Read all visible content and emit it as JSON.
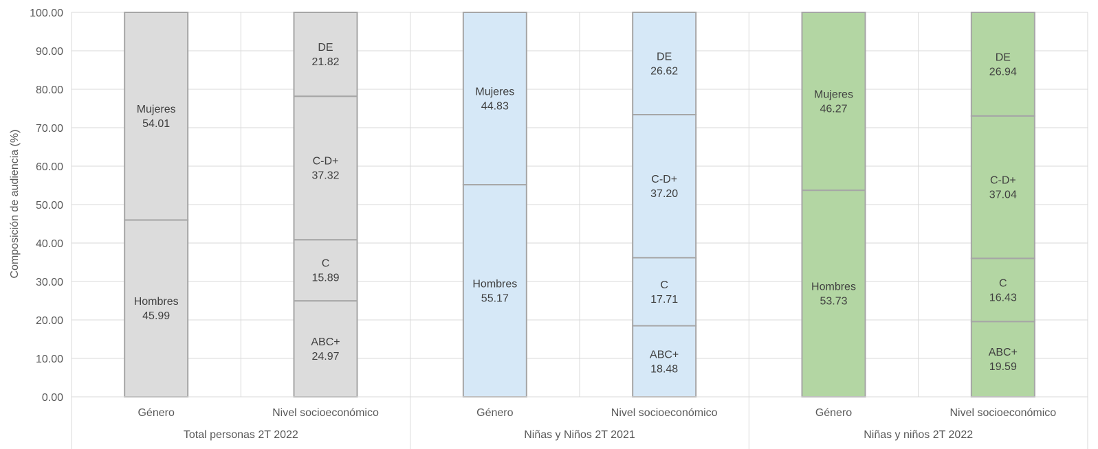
{
  "chart_data": {
    "type": "bar",
    "stacked": true,
    "ylabel": "Composición de audiencia (%)",
    "ylim": [
      0,
      100
    ],
    "yticks": [
      "0.00",
      "10.00",
      "20.00",
      "30.00",
      "40.00",
      "50.00",
      "60.00",
      "70.00",
      "80.00",
      "90.00",
      "100.00"
    ],
    "grid": true,
    "groups": [
      {
        "name": "Total personas 2T 2022",
        "color": "#dcdcdc",
        "bars": [
          {
            "category": "Género",
            "segments": [
              {
                "label": "Hombres",
                "value": 45.99
              },
              {
                "label": "Mujeres",
                "value": 54.01
              }
            ]
          },
          {
            "category": "Nivel socioeconómico",
            "segments": [
              {
                "label": "ABC+",
                "value": 24.97
              },
              {
                "label": "C",
                "value": 15.89
              },
              {
                "label": "C-D+",
                "value": 37.32
              },
              {
                "label": "DE",
                "value": 21.82
              }
            ]
          }
        ]
      },
      {
        "name": "Niñas y Niños 2T 2021",
        "color": "#d6e8f7",
        "bars": [
          {
            "category": "Género",
            "segments": [
              {
                "label": "Hombres",
                "value": 55.17
              },
              {
                "label": "Mujeres",
                "value": 44.83
              }
            ]
          },
          {
            "category": "Nivel socioeconómico",
            "segments": [
              {
                "label": "ABC+",
                "value": 18.48
              },
              {
                "label": "C",
                "value": 17.71
              },
              {
                "label": "C-D+",
                "value": 37.2
              },
              {
                "label": "DE",
                "value": 26.62
              }
            ]
          }
        ]
      },
      {
        "name": "Niñas y niños 2T 2022",
        "color": "#b3d6a3",
        "bars": [
          {
            "category": "Género",
            "segments": [
              {
                "label": "Hombres",
                "value": 53.73
              },
              {
                "label": "Mujeres",
                "value": 46.27
              }
            ]
          },
          {
            "category": "Nivel socioeconómico",
            "segments": [
              {
                "label": "ABC+",
                "value": 19.59
              },
              {
                "label": "C",
                "value": 16.43
              },
              {
                "label": "C-D+",
                "value": 37.04
              },
              {
                "label": "DE",
                "value": 26.94
              }
            ]
          }
        ]
      }
    ]
  }
}
